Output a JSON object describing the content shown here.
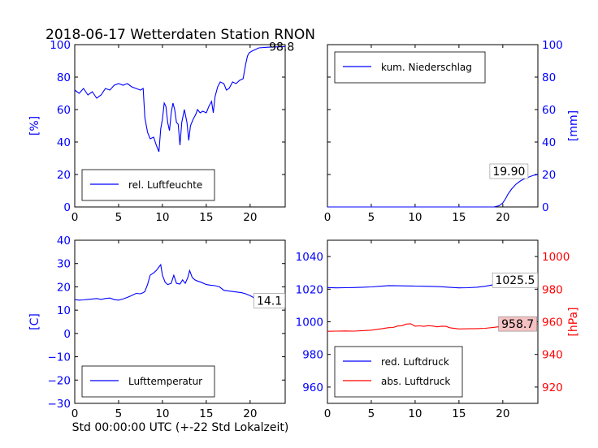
{
  "figure": {
    "title": "2018-06-17 Wetterdaten Station RNON",
    "xlabel": "Std 00:00:00 UTC (+-22 Std Lokalzeit)"
  },
  "colors": {
    "blue": "#0000ff",
    "red": "#ff0000",
    "black": "#000000",
    "annot_bg_red": "#f4c2c2"
  },
  "chart_data": [
    {
      "id": "humidity",
      "type": "line",
      "ylabel": "[%]",
      "ylabel_side": "left",
      "ylabel_color": "#0000ff",
      "xlim": [
        0,
        24
      ],
      "ylim": [
        0,
        100
      ],
      "xticks": [
        0,
        5,
        10,
        15,
        20
      ],
      "yticks": [
        0,
        20,
        40,
        60,
        80,
        100
      ],
      "ytick_color": "#0000ff",
      "legend": {
        "placement": "lower-left",
        "entries": [
          {
            "label": "rel. Luftfeuchte",
            "color": "#0000ff"
          }
        ]
      },
      "annotations": [
        {
          "text": "98.8",
          "x": 23.6,
          "y": 98.8,
          "box": false
        }
      ],
      "series": [
        {
          "name": "rel. Luftfeuchte",
          "color": "#0000ff",
          "x": [
            0,
            0.5,
            1,
            1.5,
            2,
            2.5,
            3,
            3.5,
            4,
            4.5,
            5,
            5.5,
            6,
            6.5,
            7,
            7.5,
            7.8,
            8,
            8.3,
            8.6,
            9,
            9.3,
            9.6,
            9.8,
            10,
            10.2,
            10.4,
            10.6,
            10.8,
            11,
            11.2,
            11.4,
            11.6,
            11.8,
            12,
            12.2,
            12.5,
            12.8,
            13,
            13.2,
            13.5,
            13.8,
            14,
            14.3,
            14.6,
            15,
            15.3,
            15.6,
            15.8,
            16,
            16.3,
            16.6,
            17,
            17.3,
            17.6,
            18,
            18.4,
            18.8,
            19.2,
            19.5,
            19.7,
            19.9,
            20.2,
            20.6,
            21,
            22,
            23,
            24
          ],
          "y": [
            72,
            70,
            73,
            69,
            71,
            67,
            69,
            73,
            72,
            75,
            76,
            75,
            76,
            74,
            73,
            72,
            73,
            55,
            46,
            42,
            43,
            38,
            34,
            48,
            54,
            64,
            62,
            52,
            47,
            58,
            64,
            60,
            52,
            51,
            38,
            52,
            60,
            52,
            41,
            50,
            54,
            57,
            60,
            58,
            59,
            58,
            62,
            65,
            58,
            68,
            74,
            77,
            76,
            72,
            73,
            77,
            76,
            78,
            79,
            88,
            93,
            95,
            96,
            97,
            98,
            98.4,
            98.6,
            98.8
          ]
        }
      ]
    },
    {
      "id": "precip",
      "type": "line",
      "ylabel": "[mm]",
      "ylabel_side": "right",
      "ylabel_color": "#0000ff",
      "xlim": [
        0,
        24
      ],
      "ylim": [
        0,
        100
      ],
      "xticks": [
        0,
        5,
        10,
        15,
        20
      ],
      "yticks": [
        0,
        20,
        40,
        60,
        80,
        100
      ],
      "ytick_color": "#0000ff",
      "legend": {
        "placement": "upper-left",
        "entries": [
          {
            "label": "kum. Niederschlag",
            "color": "#0000ff"
          }
        ]
      },
      "annotations": [
        {
          "text": "19.90",
          "x": 20.7,
          "y": 22,
          "box": true
        }
      ],
      "series": [
        {
          "name": "kum. Niederschlag",
          "color": "#0000ff",
          "x": [
            0,
            19.0,
            19.6,
            20.0,
            20.3,
            20.6,
            21.0,
            21.5,
            22.0,
            22.5,
            23.0,
            23.5,
            24
          ],
          "y": [
            0,
            0,
            0.8,
            2.5,
            5,
            8,
            11,
            14,
            16,
            17.5,
            18.5,
            19.5,
            19.9
          ]
        }
      ]
    },
    {
      "id": "temperature",
      "type": "line",
      "ylabel": "[C]",
      "ylabel_side": "left",
      "ylabel_color": "#0000ff",
      "xlim": [
        0,
        24
      ],
      "ylim": [
        -30,
        40
      ],
      "xticks": [
        0,
        5,
        10,
        15,
        20
      ],
      "yticks": [
        -30,
        -20,
        -10,
        0,
        10,
        20,
        30,
        40
      ],
      "ytick_color": "#0000ff",
      "legend": {
        "placement": "lower-left",
        "entries": [
          {
            "label": "Lufttemperatur",
            "color": "#0000ff"
          }
        ]
      },
      "annotations": [
        {
          "text": "14.1",
          "x": 22.2,
          "y": 14.1,
          "box": true
        }
      ],
      "series": [
        {
          "name": "Lufttemperatur",
          "color": "#0000ff",
          "x": [
            0,
            0.5,
            1,
            1.5,
            2,
            2.5,
            3,
            3.5,
            4,
            4.5,
            5,
            5.5,
            6,
            6.5,
            7,
            7.5,
            7.8,
            8,
            8.3,
            8.6,
            9,
            9.3,
            9.6,
            9.8,
            10,
            10.3,
            10.6,
            11,
            11.3,
            11.6,
            12,
            12.3,
            12.6,
            12.9,
            13.1,
            13.4,
            13.7,
            14,
            14.4,
            15,
            15.5,
            16,
            16.5,
            17,
            18,
            19,
            19.5,
            20,
            20.5,
            21,
            22,
            23,
            24
          ],
          "y": [
            14.5,
            14.3,
            14.4,
            14.6,
            14.8,
            15,
            14.6,
            15,
            15.2,
            14.5,
            14.3,
            14.8,
            15.5,
            16.3,
            17.2,
            17,
            17.5,
            18,
            21,
            25,
            26,
            27,
            28.5,
            29.5,
            25,
            22,
            21,
            21.5,
            25,
            21.5,
            21.2,
            23,
            21.5,
            24,
            27,
            24,
            23,
            22.5,
            22,
            21,
            20.7,
            20.5,
            20,
            18.5,
            18,
            17.5,
            17,
            16.2,
            15.2,
            14.5,
            14.1,
            14.1,
            14.1
          ]
        }
      ]
    },
    {
      "id": "pressure",
      "type": "line",
      "xlim": [
        0,
        24
      ],
      "xticks": [
        0,
        5,
        10,
        15,
        20
      ],
      "left_axis": {
        "ylim": [
          950,
          1050
        ],
        "yticks": [
          960,
          980,
          1000,
          1020,
          1040
        ],
        "color": "#0000ff"
      },
      "right_axis": {
        "ylim": [
          910,
          1010
        ],
        "yticks": [
          920,
          940,
          960,
          980,
          1000
        ],
        "color": "#ff0000",
        "ylabel": "[hPa]"
      },
      "legend": {
        "placement": "lower-left",
        "entries": [
          {
            "label": "red. Luftdruck",
            "color": "#0000ff"
          },
          {
            "label": "abs. Luftdruck",
            "color": "#ff0000"
          }
        ]
      },
      "annotations": [
        {
          "text": "1025.5",
          "x": 21.4,
          "y": 1025.5,
          "box": true,
          "axis": "left",
          "bg": "#ffffff"
        },
        {
          "text": "958.7",
          "x": 21.7,
          "y": 958.7,
          "box": true,
          "axis": "right",
          "bg": "#f4c2c2"
        }
      ],
      "series": [
        {
          "name": "red. Luftdruck",
          "color": "#0000ff",
          "axis": "left",
          "x": [
            0,
            1,
            2,
            3,
            4,
            5,
            6,
            7,
            8,
            9,
            10,
            11,
            12,
            13,
            14,
            15,
            16,
            17,
            18,
            19,
            20,
            21,
            22,
            23,
            24
          ],
          "y": [
            1021,
            1020.8,
            1020.9,
            1021,
            1021.2,
            1021.4,
            1021.8,
            1022.2,
            1022.1,
            1022.0,
            1021.9,
            1021.8,
            1021.7,
            1021.5,
            1021.1,
            1020.8,
            1020.9,
            1021.2,
            1021.8,
            1022.8,
            1023.8,
            1024.6,
            1025.1,
            1025.4,
            1025.5
          ]
        },
        {
          "name": "abs. Luftdruck",
          "color": "#ff0000",
          "axis": "right",
          "x": [
            0,
            1,
            2,
            3,
            4,
            5,
            6,
            7,
            7.5,
            8,
            8.5,
            9,
            9.5,
            10,
            10.5,
            11,
            11.5,
            12,
            12.5,
            13,
            13.5,
            14,
            15,
            16,
            17,
            18,
            19,
            20,
            21,
            22,
            23,
            24
          ],
          "y": [
            954.2,
            954.3,
            954.4,
            954.3,
            954.6,
            954.9,
            955.6,
            956.4,
            956.5,
            957.4,
            957.6,
            958.6,
            958.8,
            957.3,
            957.5,
            957.2,
            957.6,
            957.4,
            956.9,
            957.3,
            957.2,
            956.3,
            955.6,
            955.7,
            955.8,
            956.0,
            956.6,
            957.2,
            957.9,
            958.3,
            958.5,
            958.7
          ]
        }
      ]
    }
  ]
}
